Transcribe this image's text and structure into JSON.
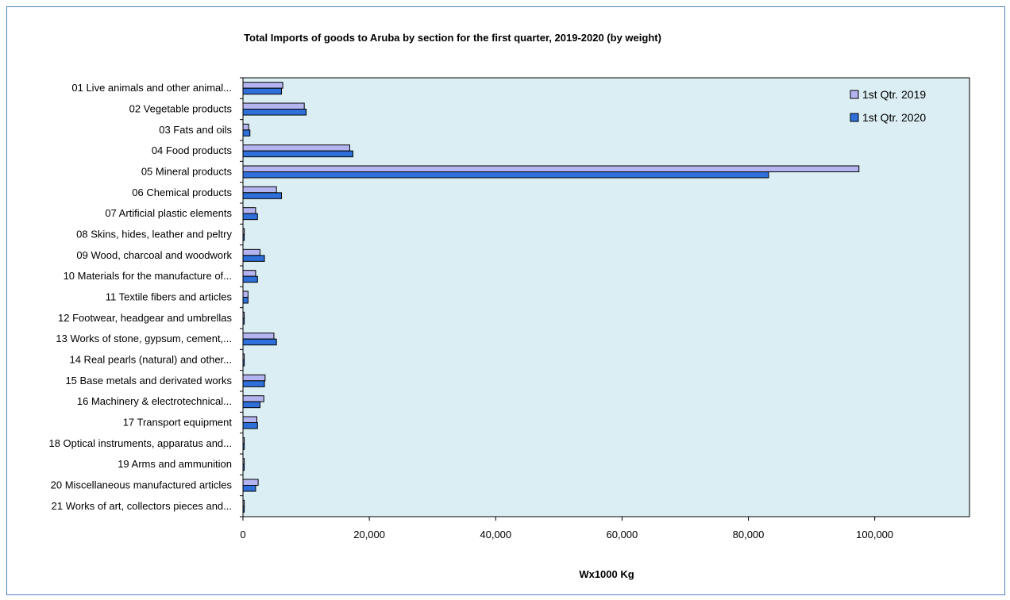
{
  "chart_data": {
    "type": "bar",
    "orientation": "horizontal",
    "title": "Total Imports of goods to Aruba by section for the first quarter, 2019-2020 (by weight)",
    "xlabel": "Wx1000 Kg",
    "ylabel": "",
    "xlim": [
      0,
      115000
    ],
    "xticks": [
      0,
      20000,
      40000,
      60000,
      80000,
      100000
    ],
    "xtick_labels": [
      "0",
      "20,000",
      "40,000",
      "60,000",
      "80,000",
      "100,000"
    ],
    "grid": false,
    "legend_position": "top-right",
    "categories": [
      "01 Live animals and other animal...",
      "02 Vegetable products",
      "03 Fats and oils",
      "04 Food products",
      "05 Mineral products",
      "06 Chemical products",
      "07 Artificial plastic elements",
      "08 Skins, hides, leather and peltry",
      "09 Wood, charcoal and woodwork",
      "10 Materials for the manufacture of...",
      "11 Textile fibers and articles",
      "12 Footwear, headgear and umbrellas",
      "13 Works of stone, gypsum, cement,...",
      "14 Real pearls (natural) and other...",
      "15 Base metals and derivated works",
      "16 Machinery & electrotechnical...",
      "17 Transport equipment",
      "18 Optical instruments, apparatus and...",
      "19 Arms and ammunition",
      "20 Miscellaneous manufactured articles",
      "21 Works of art, collectors pieces and..."
    ],
    "series": [
      {
        "name": "1st Qtr. 2019",
        "color": "#b4b4f0",
        "values": [
          6300,
          9700,
          900,
          16900,
          97500,
          5300,
          2000,
          200,
          2700,
          2000,
          800,
          200,
          4900,
          200,
          3500,
          3300,
          2200,
          200,
          200,
          2400,
          200
        ]
      },
      {
        "name": "1st Qtr. 2020",
        "color": "#2e6fd9",
        "values": [
          6100,
          10000,
          1100,
          17400,
          83200,
          6100,
          2300,
          200,
          3400,
          2300,
          800,
          200,
          5300,
          200,
          3400,
          2700,
          2300,
          200,
          200,
          2000,
          200
        ]
      }
    ]
  },
  "colors": {
    "plot_background": "#daeef3",
    "frame_border": "#4f81bd",
    "bar_outline": "#000000"
  }
}
